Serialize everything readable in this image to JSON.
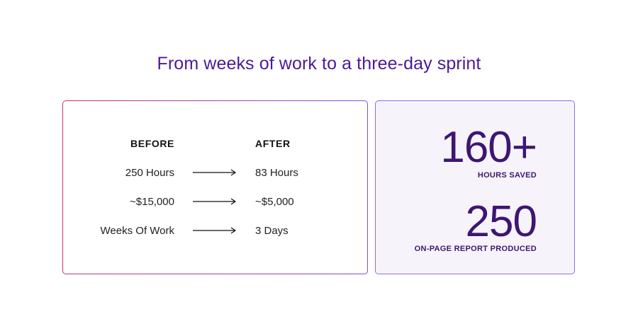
{
  "title": "From weeks of work to a three-day sprint",
  "comparison": {
    "before_header": "BEFORE",
    "after_header": "AFTER",
    "rows": [
      {
        "before": "250 Hours",
        "after": "83 Hours"
      },
      {
        "before": "~$15,000",
        "after": "~$5,000"
      },
      {
        "before": "Weeks Of Work",
        "after": "3 Days"
      }
    ]
  },
  "stats": [
    {
      "value": "160+",
      "label": "HOURS SAVED"
    },
    {
      "value": "250",
      "label": "ON-PAGE REPORT PRODUCED"
    }
  ],
  "colors": {
    "title": "#4a1a9c",
    "stat_text": "#3d1672",
    "left_border_start": "#c8326a",
    "left_border_end": "#7a4fe0",
    "right_border": "#8f6be6",
    "right_background": "#f6f3fb"
  },
  "icons": [
    "right-arrow-icon"
  ]
}
